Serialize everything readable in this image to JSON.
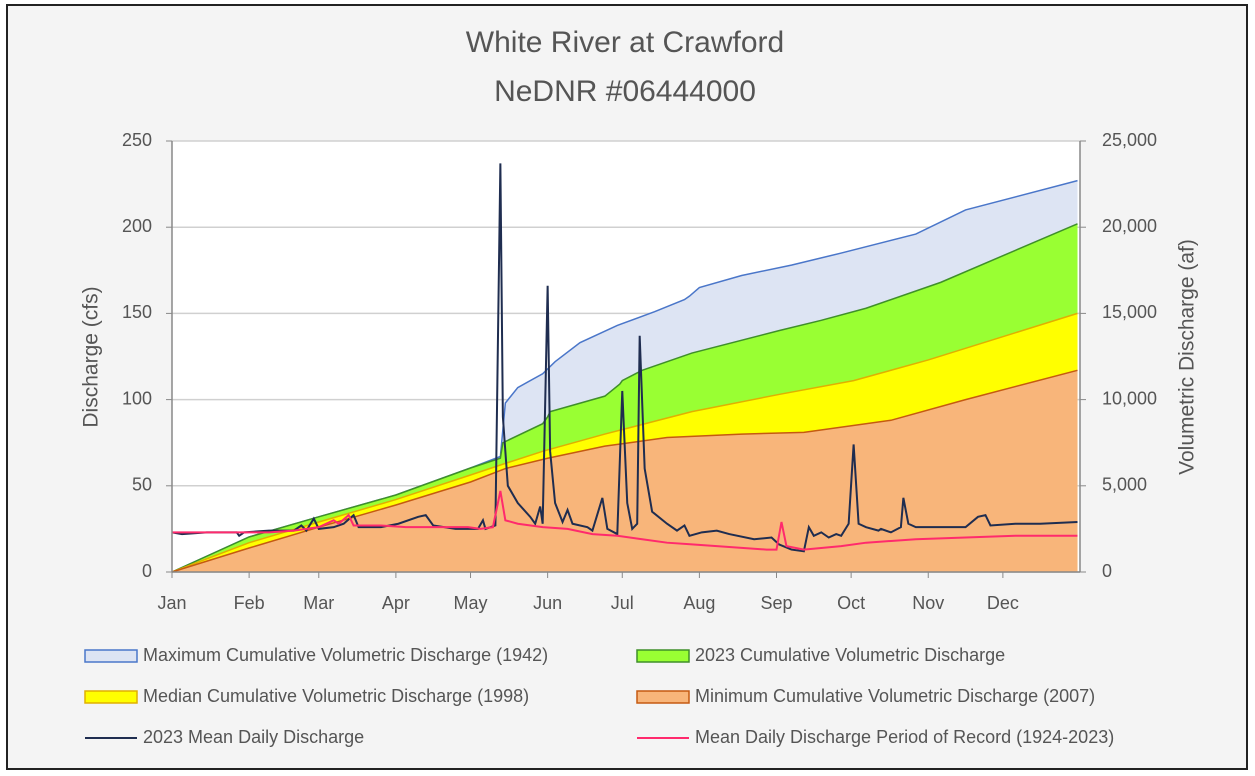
{
  "chart_data": {
    "type": "area-line",
    "title": "White River at Crawford",
    "subtitle": "NeDNR #06444000",
    "y_label": "Discharge (cfs)",
    "y2_label": "Volumetric Discharge (af)",
    "xlim": [
      1,
      366
    ],
    "xticks": [
      {
        "value": 1,
        "label": "Jan"
      },
      {
        "value": 32,
        "label": "Feb"
      },
      {
        "value": 60,
        "label": "Mar"
      },
      {
        "value": 91,
        "label": "Apr"
      },
      {
        "value": 121,
        "label": "May"
      },
      {
        "value": 152,
        "label": "Jun"
      },
      {
        "value": 182,
        "label": "Jul"
      },
      {
        "value": 213,
        "label": "Aug"
      },
      {
        "value": 244,
        "label": "Sep"
      },
      {
        "value": 274,
        "label": "Oct"
      },
      {
        "value": 305,
        "label": "Nov"
      },
      {
        "value": 335,
        "label": "Dec"
      }
    ],
    "ylim": [
      0,
      250
    ],
    "yticks": [
      0,
      50,
      100,
      150,
      200,
      250
    ],
    "y2lim": [
      0,
      25000
    ],
    "y2ticks": [
      0,
      {
        "value": 5000,
        "label": "5,000"
      },
      {
        "value": 10000,
        "label": "10,000"
      },
      {
        "value": 15000,
        "label": "15,000"
      },
      {
        "value": 20000,
        "label": "20,000"
      },
      {
        "value": 25000,
        "label": "25,000"
      }
    ],
    "grid": true,
    "series": [
      {
        "name": "Maximum Cumulative Volumetric Discharge (1942)",
        "kind": "area",
        "axis": "y2",
        "color": "#dde4f3",
        "edge": "#4a76c9",
        "x": [
          1,
          32,
          60,
          91,
          121,
          133,
          135,
          140,
          150,
          155,
          165,
          180,
          195,
          207,
          209,
          213,
          230,
          250,
          270,
          300,
          320,
          365
        ],
        "values": [
          0,
          2030,
          3200,
          4466,
          6032,
          6700,
          9800,
          10700,
          11500,
          12200,
          13300,
          14300,
          15100,
          15800,
          16000,
          16500,
          17200,
          17800,
          18500,
          19600,
          21000,
          22700
        ]
      },
      {
        "name": "2023 Cumulative Volumetric Discharge",
        "kind": "area",
        "axis": "y2",
        "color": "#99ff33",
        "edge": "#3f8f2a",
        "x": [
          1,
          32,
          60,
          91,
          121,
          133,
          134,
          150,
          152,
          153,
          175,
          181,
          182,
          190,
          210,
          245,
          262,
          280,
          310,
          365
        ],
        "values": [
          0,
          2030,
          3200,
          4466,
          6032,
          6600,
          7500,
          8600,
          9000,
          9300,
          10200,
          10900,
          11100,
          11700,
          12700,
          14000,
          14600,
          15300,
          16800,
          20200
        ]
      },
      {
        "name": "Median Cumulative Volumetric Discharge (1998)",
        "kind": "area",
        "axis": "y2",
        "color": "#ffff00",
        "edge": "#e0b000",
        "x": [
          1,
          32,
          60,
          91,
          121,
          135,
          150,
          175,
          210,
          245,
          275,
          305,
          365
        ],
        "values": [
          0,
          1700,
          2900,
          4200,
          5626,
          6300,
          7000,
          8000,
          9300,
          10300,
          11100,
          12300,
          15000
        ]
      },
      {
        "name": "Minimum Cumulative Volumetric Discharge (2007)",
        "kind": "area",
        "axis": "y2",
        "color": "#f8b57a",
        "edge": "#c55a11",
        "x": [
          1,
          32,
          60,
          91,
          121,
          135,
          152,
          175,
          200,
          230,
          255,
          290,
          320,
          365
        ],
        "values": [
          0,
          1392,
          2600,
          3886,
          5220,
          6000,
          6600,
          7300,
          7800,
          8000,
          8100,
          8800,
          10000,
          11700
        ]
      },
      {
        "name": "2023 Mean Daily Discharge",
        "kind": "line",
        "axis": "y",
        "color": "#1f2d50",
        "x": [
          1,
          5,
          15,
          27,
          28,
          30,
          40,
          50,
          53,
          55,
          58,
          60,
          66,
          70,
          74,
          76,
          85,
          92,
          100,
          103,
          106,
          115,
          124,
          126,
          127,
          131,
          133,
          134,
          136,
          140,
          145,
          147,
          149,
          150,
          152,
          153,
          155,
          158,
          160,
          162,
          168,
          170,
          174,
          176,
          180,
          182,
          184,
          186,
          188,
          189,
          191,
          194,
          200,
          204,
          207,
          209,
          214,
          220,
          225,
          235,
          242,
          245,
          250,
          255,
          257,
          259,
          262,
          265,
          268,
          270,
          273,
          275,
          277,
          280,
          285,
          286,
          290,
          294,
          295,
          297,
          300,
          320,
          325,
          328,
          330,
          340,
          350,
          365
        ],
        "values": [
          23,
          22,
          23,
          23,
          21,
          23,
          24,
          24,
          27,
          24,
          31,
          25,
          26,
          28,
          33,
          26,
          26,
          28,
          32,
          33,
          27,
          25,
          25,
          30,
          25,
          27,
          237,
          90,
          50,
          40,
          32,
          28,
          38,
          28,
          166,
          70,
          40,
          29,
          36,
          28,
          26,
          24,
          43,
          25,
          22,
          105,
          40,
          25,
          28,
          137,
          60,
          35,
          28,
          24,
          27,
          21,
          23,
          24,
          22,
          19,
          20,
          16,
          13,
          12,
          26,
          21,
          23,
          20,
          22,
          21,
          28,
          74,
          28,
          26,
          24,
          25,
          23,
          26,
          43,
          28,
          26,
          26,
          32,
          33,
          27,
          28,
          28,
          29
        ]
      },
      {
        "name": "Mean Daily Discharge Period of Record (1924-2023)",
        "kind": "line",
        "axis": "y",
        "color": "#ff2a6d",
        "x": [
          1,
          20,
          40,
          50,
          60,
          66,
          68,
          72,
          74,
          85,
          95,
          110,
          120,
          125,
          130,
          133,
          135,
          140,
          150,
          160,
          170,
          180,
          190,
          200,
          210,
          220,
          230,
          240,
          244,
          246,
          248,
          255,
          270,
          280,
          290,
          300,
          320,
          340,
          365
        ],
        "values": [
          23,
          23,
          23,
          24,
          26,
          30,
          28,
          33,
          27,
          27,
          26,
          26,
          26,
          25,
          26,
          47,
          30,
          28,
          26,
          25,
          22,
          21,
          19,
          17,
          16,
          15,
          14,
          13,
          13,
          29,
          15,
          13,
          15,
          17,
          18,
          19,
          20,
          21,
          21
        ]
      }
    ]
  }
}
